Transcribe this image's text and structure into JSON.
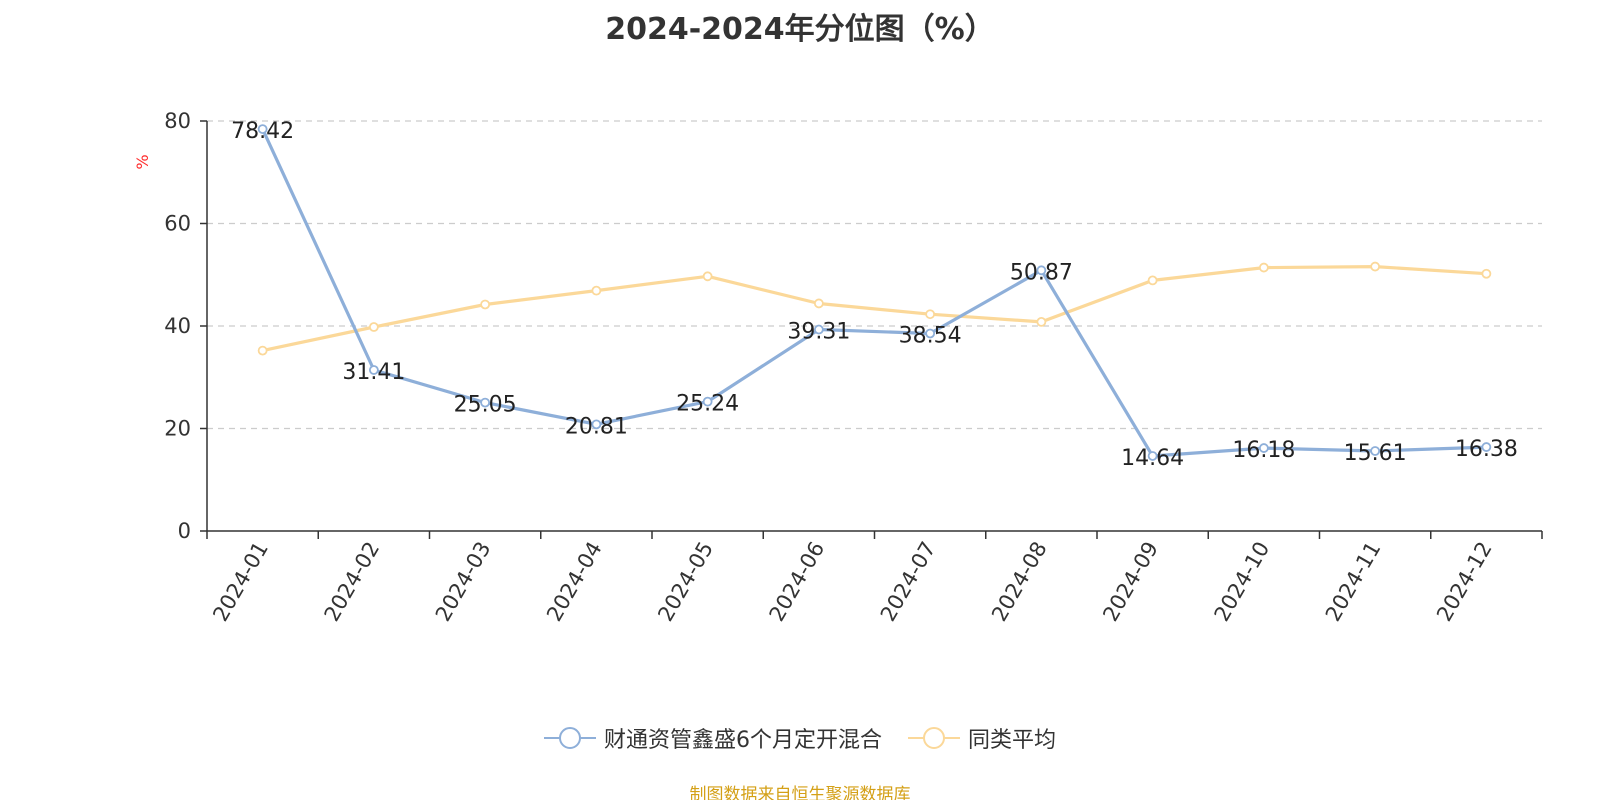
{
  "chart_data": {
    "type": "line",
    "title": "2024-2024年分位图（%）",
    "ylabel": "%",
    "xlabel": "",
    "ylim": [
      0,
      80
    ],
    "yticks": [
      0,
      20,
      40,
      60,
      80
    ],
    "grid": true,
    "legend_position": "bottom",
    "categories": [
      "2024-01",
      "2024-02",
      "2024-03",
      "2024-04",
      "2024-05",
      "2024-06",
      "2024-07",
      "2024-08",
      "2024-09",
      "2024-10",
      "2024-11",
      "2024-12"
    ],
    "series": [
      {
        "name": "财通资管鑫盛6个月定开混合",
        "color": "#8eafd9",
        "show_labels": true,
        "values": [
          78.42,
          31.41,
          25.05,
          20.81,
          25.24,
          39.31,
          38.54,
          50.87,
          14.64,
          16.18,
          15.61,
          16.38
        ]
      },
      {
        "name": "同类平均",
        "color": "#fbd899",
        "show_labels": false,
        "values": [
          35.2,
          39.8,
          44.2,
          46.9,
          49.7,
          44.4,
          42.3,
          40.8,
          48.9,
          51.4,
          51.6,
          50.2
        ]
      }
    ]
  },
  "footer": {
    "source": "制图数据来自恒生聚源数据库"
  }
}
